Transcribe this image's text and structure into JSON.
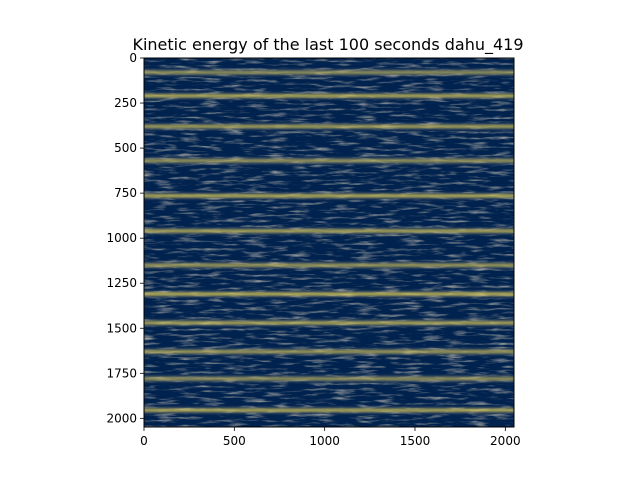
{
  "chart_data": {
    "type": "heatmap",
    "title": "Kinetic energy of the last 100 seconds dahu_419",
    "xlabel": "",
    "ylabel": "",
    "xlim": [
      0,
      2048
    ],
    "ylim": [
      2048,
      0
    ],
    "y_axis_inverted": true,
    "x_ticks": [
      0,
      500,
      1000,
      1500,
      2000
    ],
    "y_ticks": [
      0,
      250,
      500,
      750,
      1000,
      1250,
      1500,
      1750,
      2000
    ],
    "grid": false,
    "colormap": "cividis",
    "colors": {
      "low": "#00224e",
      "mid": "#7c7b78",
      "high": "#fee838"
    },
    "bright_bands_y": [
      80,
      210,
      380,
      570,
      765,
      960,
      1150,
      1310,
      1470,
      1630,
      1780,
      1955
    ],
    "field": {
      "rows": 2048,
      "cols": 2048,
      "pattern": "horizontal bright streaks on dark background"
    }
  }
}
